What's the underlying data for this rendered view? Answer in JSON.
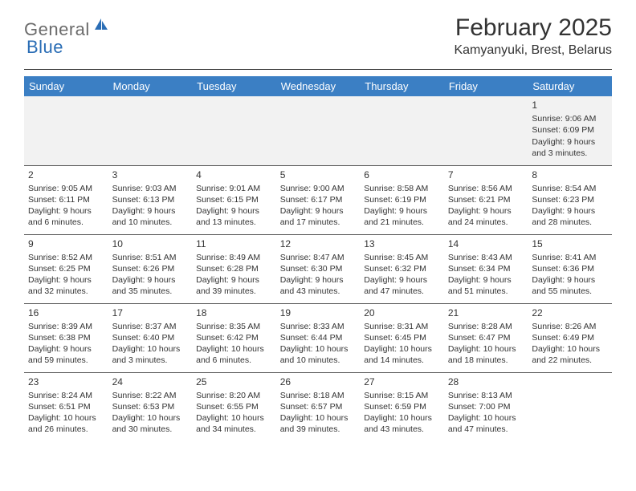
{
  "brand": {
    "part1": "General",
    "part2": "Blue",
    "accent": "#2a6db5",
    "gray": "#6b6b6b"
  },
  "title": "February 2025",
  "location": "Kamyanyuki, Brest, Belarus",
  "header_bg": "#3b7fc4",
  "alt_row_bg": "#f2f2f2",
  "weekdays": [
    "Sunday",
    "Monday",
    "Tuesday",
    "Wednesday",
    "Thursday",
    "Friday",
    "Saturday"
  ],
  "weeks": [
    [
      null,
      null,
      null,
      null,
      null,
      null,
      {
        "n": "1",
        "sunrise": "Sunrise: 9:06 AM",
        "sunset": "Sunset: 6:09 PM",
        "day1": "Daylight: 9 hours",
        "day2": "and 3 minutes."
      }
    ],
    [
      {
        "n": "2",
        "sunrise": "Sunrise: 9:05 AM",
        "sunset": "Sunset: 6:11 PM",
        "day1": "Daylight: 9 hours",
        "day2": "and 6 minutes."
      },
      {
        "n": "3",
        "sunrise": "Sunrise: 9:03 AM",
        "sunset": "Sunset: 6:13 PM",
        "day1": "Daylight: 9 hours",
        "day2": "and 10 minutes."
      },
      {
        "n": "4",
        "sunrise": "Sunrise: 9:01 AM",
        "sunset": "Sunset: 6:15 PM",
        "day1": "Daylight: 9 hours",
        "day2": "and 13 minutes."
      },
      {
        "n": "5",
        "sunrise": "Sunrise: 9:00 AM",
        "sunset": "Sunset: 6:17 PM",
        "day1": "Daylight: 9 hours",
        "day2": "and 17 minutes."
      },
      {
        "n": "6",
        "sunrise": "Sunrise: 8:58 AM",
        "sunset": "Sunset: 6:19 PM",
        "day1": "Daylight: 9 hours",
        "day2": "and 21 minutes."
      },
      {
        "n": "7",
        "sunrise": "Sunrise: 8:56 AM",
        "sunset": "Sunset: 6:21 PM",
        "day1": "Daylight: 9 hours",
        "day2": "and 24 minutes."
      },
      {
        "n": "8",
        "sunrise": "Sunrise: 8:54 AM",
        "sunset": "Sunset: 6:23 PM",
        "day1": "Daylight: 9 hours",
        "day2": "and 28 minutes."
      }
    ],
    [
      {
        "n": "9",
        "sunrise": "Sunrise: 8:52 AM",
        "sunset": "Sunset: 6:25 PM",
        "day1": "Daylight: 9 hours",
        "day2": "and 32 minutes."
      },
      {
        "n": "10",
        "sunrise": "Sunrise: 8:51 AM",
        "sunset": "Sunset: 6:26 PM",
        "day1": "Daylight: 9 hours",
        "day2": "and 35 minutes."
      },
      {
        "n": "11",
        "sunrise": "Sunrise: 8:49 AM",
        "sunset": "Sunset: 6:28 PM",
        "day1": "Daylight: 9 hours",
        "day2": "and 39 minutes."
      },
      {
        "n": "12",
        "sunrise": "Sunrise: 8:47 AM",
        "sunset": "Sunset: 6:30 PM",
        "day1": "Daylight: 9 hours",
        "day2": "and 43 minutes."
      },
      {
        "n": "13",
        "sunrise": "Sunrise: 8:45 AM",
        "sunset": "Sunset: 6:32 PM",
        "day1": "Daylight: 9 hours",
        "day2": "and 47 minutes."
      },
      {
        "n": "14",
        "sunrise": "Sunrise: 8:43 AM",
        "sunset": "Sunset: 6:34 PM",
        "day1": "Daylight: 9 hours",
        "day2": "and 51 minutes."
      },
      {
        "n": "15",
        "sunrise": "Sunrise: 8:41 AM",
        "sunset": "Sunset: 6:36 PM",
        "day1": "Daylight: 9 hours",
        "day2": "and 55 minutes."
      }
    ],
    [
      {
        "n": "16",
        "sunrise": "Sunrise: 8:39 AM",
        "sunset": "Sunset: 6:38 PM",
        "day1": "Daylight: 9 hours",
        "day2": "and 59 minutes."
      },
      {
        "n": "17",
        "sunrise": "Sunrise: 8:37 AM",
        "sunset": "Sunset: 6:40 PM",
        "day1": "Daylight: 10 hours",
        "day2": "and 3 minutes."
      },
      {
        "n": "18",
        "sunrise": "Sunrise: 8:35 AM",
        "sunset": "Sunset: 6:42 PM",
        "day1": "Daylight: 10 hours",
        "day2": "and 6 minutes."
      },
      {
        "n": "19",
        "sunrise": "Sunrise: 8:33 AM",
        "sunset": "Sunset: 6:44 PM",
        "day1": "Daylight: 10 hours",
        "day2": "and 10 minutes."
      },
      {
        "n": "20",
        "sunrise": "Sunrise: 8:31 AM",
        "sunset": "Sunset: 6:45 PM",
        "day1": "Daylight: 10 hours",
        "day2": "and 14 minutes."
      },
      {
        "n": "21",
        "sunrise": "Sunrise: 8:28 AM",
        "sunset": "Sunset: 6:47 PM",
        "day1": "Daylight: 10 hours",
        "day2": "and 18 minutes."
      },
      {
        "n": "22",
        "sunrise": "Sunrise: 8:26 AM",
        "sunset": "Sunset: 6:49 PM",
        "day1": "Daylight: 10 hours",
        "day2": "and 22 minutes."
      }
    ],
    [
      {
        "n": "23",
        "sunrise": "Sunrise: 8:24 AM",
        "sunset": "Sunset: 6:51 PM",
        "day1": "Daylight: 10 hours",
        "day2": "and 26 minutes."
      },
      {
        "n": "24",
        "sunrise": "Sunrise: 8:22 AM",
        "sunset": "Sunset: 6:53 PM",
        "day1": "Daylight: 10 hours",
        "day2": "and 30 minutes."
      },
      {
        "n": "25",
        "sunrise": "Sunrise: 8:20 AM",
        "sunset": "Sunset: 6:55 PM",
        "day1": "Daylight: 10 hours",
        "day2": "and 34 minutes."
      },
      {
        "n": "26",
        "sunrise": "Sunrise: 8:18 AM",
        "sunset": "Sunset: 6:57 PM",
        "day1": "Daylight: 10 hours",
        "day2": "and 39 minutes."
      },
      {
        "n": "27",
        "sunrise": "Sunrise: 8:15 AM",
        "sunset": "Sunset: 6:59 PM",
        "day1": "Daylight: 10 hours",
        "day2": "and 43 minutes."
      },
      {
        "n": "28",
        "sunrise": "Sunrise: 8:13 AM",
        "sunset": "Sunset: 7:00 PM",
        "day1": "Daylight: 10 hours",
        "day2": "and 47 minutes."
      },
      null
    ]
  ]
}
